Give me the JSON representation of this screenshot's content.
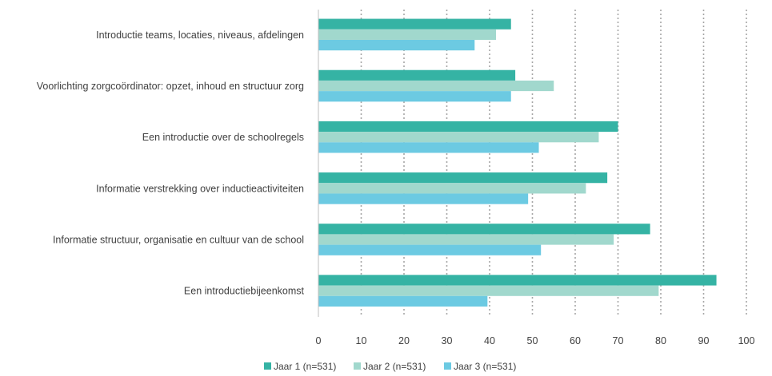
{
  "chart_data": {
    "type": "bar",
    "orientation": "horizontal",
    "categories": [
      "Introductie  teams, locaties, niveaus, afdelingen",
      "Voorlichting zorgcoördinator: opzet, inhoud en structuur zorg",
      "Een introductie over de schoolregels",
      "Informatie verstrekking over inductieactiviteiten",
      "Informatie structuur, organisatie en cultuur van de school",
      "Een introductiebijeenkomst"
    ],
    "series": [
      {
        "name": "Jaar 1 (n=531)",
        "color": "#35b3a4",
        "values": [
          45,
          46,
          70,
          67.5,
          77.5,
          93
        ]
      },
      {
        "name": "Jaar 2 (n=531)",
        "color": "#a1d8cd",
        "values": [
          41.5,
          55,
          65.5,
          62.5,
          69,
          79.5
        ]
      },
      {
        "name": "Jaar 3 (n=531)",
        "color": "#6ccae2",
        "values": [
          36.5,
          45,
          51.5,
          49,
          52,
          39.5
        ]
      }
    ],
    "xlim": [
      0,
      100
    ],
    "xticks": [
      "0",
      "10",
      "20",
      "30",
      "40",
      "50",
      "60",
      "70",
      "80",
      "90",
      "100"
    ],
    "grid": "vertical dotted",
    "legend_position": "bottom",
    "title": "",
    "xlabel": "",
    "ylabel": ""
  }
}
